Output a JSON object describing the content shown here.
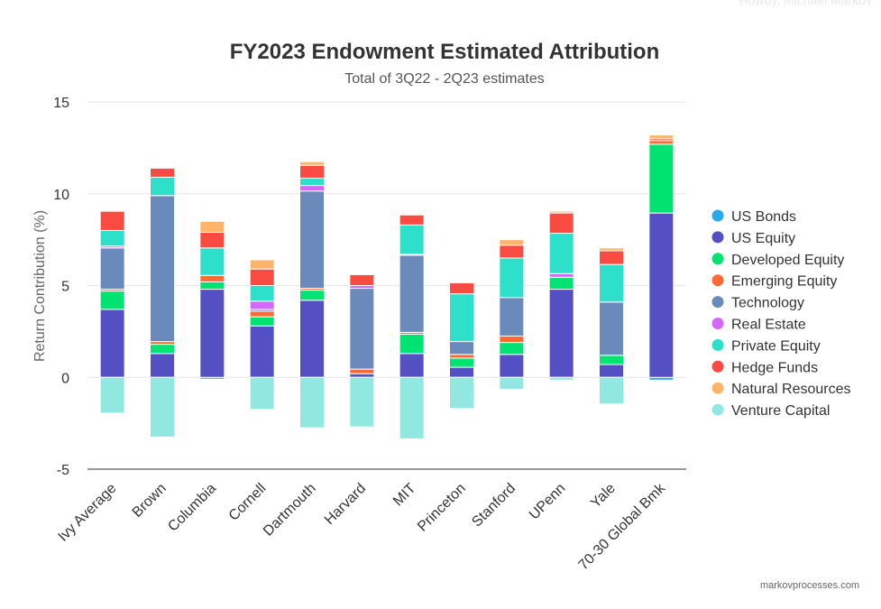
{
  "header": {
    "faded_text": "Howdy, Michael Markov"
  },
  "footer": {
    "credit": "markovprocesses.com"
  },
  "chart_data": {
    "type": "bar",
    "stacked": true,
    "title": "FY2023 Endowment Estimated Attribution",
    "subtitle": "Total of 3Q22 - 2Q23 estimates",
    "xlabel": "",
    "ylabel": "Return Contribution (%)",
    "ylim": [
      -5,
      15
    ],
    "yticks": [
      -5,
      0,
      5,
      10,
      15
    ],
    "grid": true,
    "legend_position": "right",
    "categories": [
      "Ivy Average",
      "Brown",
      "Columbia",
      "Cornell",
      "Dartmouth",
      "Harvard",
      "MIT",
      "Princeton",
      "Stanford",
      "UPenn",
      "Yale",
      "70-30 Global Bmk"
    ],
    "series": [
      {
        "name": "US Bonds",
        "color": "#2ba7ee",
        "values": [
          0,
          0,
          -0.1,
          0,
          0,
          0,
          0,
          0,
          0,
          0,
          0,
          -0.15
        ]
      },
      {
        "name": "US Equity",
        "color": "#5450c4",
        "values": [
          3.7,
          1.3,
          4.8,
          2.8,
          4.2,
          0.2,
          1.3,
          0.55,
          1.25,
          4.8,
          0.7,
          8.95
        ]
      },
      {
        "name": "Developed Equity",
        "color": "#00e272",
        "values": [
          1.0,
          0.5,
          0.4,
          0.5,
          0.55,
          0,
          1.05,
          0.5,
          0.65,
          0.65,
          0.5,
          3.75
        ]
      },
      {
        "name": "Emerging Equity",
        "color": "#fe6a35",
        "values": [
          0.1,
          0.15,
          0.35,
          0.3,
          0.1,
          0.25,
          0.1,
          0.2,
          0.35,
          0,
          0,
          0.2
        ]
      },
      {
        "name": "Technology",
        "color": "#6b8abc",
        "values": [
          2.25,
          7.95,
          0,
          0.1,
          5.3,
          4.4,
          4.2,
          0.7,
          2.1,
          0,
          2.9,
          0
        ]
      },
      {
        "name": "Real Estate",
        "color": "#d568fb",
        "values": [
          0.1,
          0,
          0,
          0.45,
          0.3,
          0.15,
          0.05,
          0,
          0,
          0.2,
          0,
          0
        ]
      },
      {
        "name": "Private Equity",
        "color": "#2ee0ca",
        "values": [
          0.85,
          1.0,
          1.5,
          0.85,
          0.4,
          0,
          1.6,
          2.6,
          2.15,
          2.2,
          2.05,
          0
        ]
      },
      {
        "name": "Hedge Funds",
        "color": "#fa4b42",
        "values": [
          1.05,
          0.5,
          0.85,
          0.9,
          0.7,
          0.6,
          0.55,
          0.6,
          0.7,
          1.1,
          0.75,
          0.1
        ]
      },
      {
        "name": "Natural Resources",
        "color": "#feb56a",
        "values": [
          0.05,
          0.05,
          0.6,
          0.5,
          0.2,
          0.05,
          0.05,
          0.05,
          0.3,
          0.1,
          0.15,
          0.2
        ]
      },
      {
        "name": "Venture Capital",
        "color": "#91e8e1",
        "values": [
          -1.95,
          -3.25,
          0,
          -1.75,
          -2.75,
          -2.7,
          -3.35,
          -1.7,
          -0.65,
          -0.15,
          -1.45,
          0
        ]
      }
    ]
  }
}
